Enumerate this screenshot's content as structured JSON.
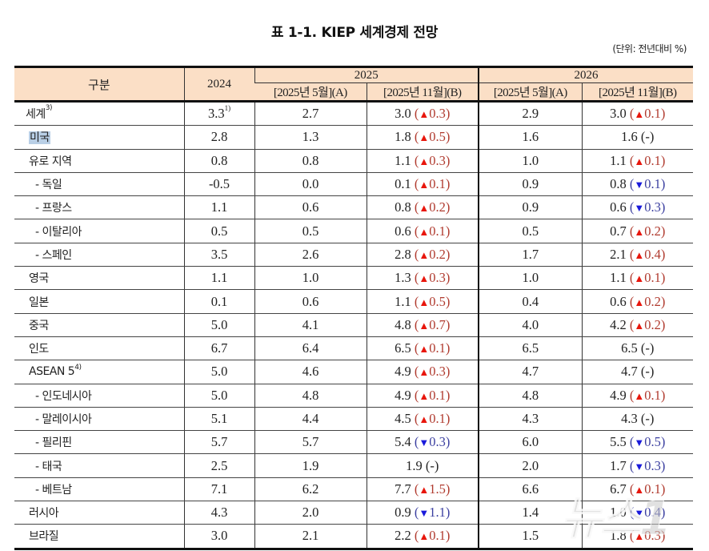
{
  "title": "표 1-1. KIEP 세계경제 전망",
  "unit": "(단위: 전년대비 %)",
  "colors": {
    "header_bg": "#fbdfc6",
    "up_triangle": "#e8160c",
    "down_triangle": "#1a1adb",
    "up_text": "#b03a2e",
    "down_text": "#3b3fa0",
    "highlight": "#b9cfe6"
  },
  "header": {
    "category": "구분",
    "y2024": "2024",
    "y2025": "2025",
    "y2026": "2026",
    "sub_may": "[2025년 5월](A)",
    "sub_nov": "[2025년 11월](B)"
  },
  "rows": [
    {
      "name": "세계",
      "sup": "3)",
      "level": 0,
      "v2024": "3.3",
      "v2024_sup": "1)",
      "y25a": "2.7",
      "y25b": "3.0",
      "y25d": "0.3",
      "y25dir": "up",
      "y26a": "2.9",
      "y26b": "3.0",
      "y26d": "0.1",
      "y26dir": "up"
    },
    {
      "name": "미국",
      "sup": "",
      "level": 1,
      "highlight": true,
      "v2024": "2.8",
      "v2024_sup": "",
      "y25a": "1.3",
      "y25b": "1.8",
      "y25d": "0.5",
      "y25dir": "up",
      "y26a": "1.6",
      "y26b": "1.6",
      "y26d": "-",
      "y26dir": "flat"
    },
    {
      "name": "유로 지역",
      "sup": "",
      "level": 1,
      "v2024": "0.8",
      "v2024_sup": "",
      "y25a": "0.8",
      "y25b": "1.1",
      "y25d": "0.3",
      "y25dir": "up",
      "y26a": "1.0",
      "y26b": "1.1",
      "y26d": "0.1",
      "y26dir": "up"
    },
    {
      "name": "-  독일",
      "sup": "",
      "level": 2,
      "v2024": "-0.5",
      "v2024_sup": "",
      "y25a": "0.0",
      "y25b": "0.1",
      "y25d": "0.1",
      "y25dir": "up",
      "y26a": "0.9",
      "y26b": "0.8",
      "y26d": "0.1",
      "y26dir": "down"
    },
    {
      "name": "-  프랑스",
      "sup": "",
      "level": 2,
      "v2024": "1.1",
      "v2024_sup": "",
      "y25a": "0.6",
      "y25b": "0.8",
      "y25d": "0.2",
      "y25dir": "up",
      "y26a": "0.9",
      "y26b": "0.6",
      "y26d": "0.3",
      "y26dir": "down"
    },
    {
      "name": "-  이탈리아",
      "sup": "",
      "level": 2,
      "v2024": "0.5",
      "v2024_sup": "",
      "y25a": "0.5",
      "y25b": "0.6",
      "y25d": "0.1",
      "y25dir": "up",
      "y26a": "0.5",
      "y26b": "0.7",
      "y26d": "0.2",
      "y26dir": "up"
    },
    {
      "name": "-  스페인",
      "sup": "",
      "level": 2,
      "v2024": "3.5",
      "v2024_sup": "",
      "y25a": "2.6",
      "y25b": "2.8",
      "y25d": "0.2",
      "y25dir": "up",
      "y26a": "1.7",
      "y26b": "2.1",
      "y26d": "0.4",
      "y26dir": "up"
    },
    {
      "name": "영국",
      "sup": "",
      "level": 1,
      "v2024": "1.1",
      "v2024_sup": "",
      "y25a": "1.0",
      "y25b": "1.3",
      "y25d": "0.3",
      "y25dir": "up",
      "y26a": "1.0",
      "y26b": "1.1",
      "y26d": "0.1",
      "y26dir": "up"
    },
    {
      "name": "일본",
      "sup": "",
      "level": 1,
      "v2024": "0.1",
      "v2024_sup": "",
      "y25a": "0.6",
      "y25b": "1.1",
      "y25d": "0.5",
      "y25dir": "up",
      "y26a": "0.4",
      "y26b": "0.6",
      "y26d": "0.2",
      "y26dir": "up"
    },
    {
      "name": "중국",
      "sup": "",
      "level": 1,
      "v2024": "5.0",
      "v2024_sup": "",
      "y25a": "4.1",
      "y25b": "4.8",
      "y25d": "0.7",
      "y25dir": "up",
      "y26a": "4.0",
      "y26b": "4.2",
      "y26d": "0.2",
      "y26dir": "up"
    },
    {
      "name": "인도",
      "sup": "",
      "level": 1,
      "v2024": "6.7",
      "v2024_sup": "",
      "y25a": "6.4",
      "y25b": "6.5",
      "y25d": "0.1",
      "y25dir": "up",
      "y26a": "6.5",
      "y26b": "6.5",
      "y26d": "-",
      "y26dir": "flat"
    },
    {
      "name": "ASEAN 5",
      "sup": "4)",
      "level": 1,
      "v2024": "5.0",
      "v2024_sup": "",
      "y25a": "4.6",
      "y25b": "4.9",
      "y25d": "0.3",
      "y25dir": "up",
      "y26a": "4.7",
      "y26b": "4.7",
      "y26d": "-",
      "y26dir": "flat"
    },
    {
      "name": "-  인도네시아",
      "sup": "",
      "level": 2,
      "v2024": "5.0",
      "v2024_sup": "",
      "y25a": "4.8",
      "y25b": "4.9",
      "y25d": "0.1",
      "y25dir": "up",
      "y26a": "4.8",
      "y26b": "4.9",
      "y26d": "0.1",
      "y26dir": "up"
    },
    {
      "name": "-  말레이시아",
      "sup": "",
      "level": 2,
      "v2024": "5.1",
      "v2024_sup": "",
      "y25a": "4.4",
      "y25b": "4.5",
      "y25d": "0.1",
      "y25dir": "up",
      "y26a": "4.3",
      "y26b": "4.3",
      "y26d": "-",
      "y26dir": "flat"
    },
    {
      "name": "-  필리핀",
      "sup": "",
      "level": 2,
      "v2024": "5.7",
      "v2024_sup": "",
      "y25a": "5.7",
      "y25b": "5.4",
      "y25d": "0.3",
      "y25dir": "down",
      "y26a": "6.0",
      "y26b": "5.5",
      "y26d": "0.5",
      "y26dir": "down"
    },
    {
      "name": "-  태국",
      "sup": "",
      "level": 2,
      "v2024": "2.5",
      "v2024_sup": "",
      "y25a": "1.9",
      "y25b": "1.9",
      "y25d": "-",
      "y25dir": "flat",
      "y26a": "2.0",
      "y26b": "1.7",
      "y26d": "0.3",
      "y26dir": "down"
    },
    {
      "name": "-  베트남",
      "sup": "",
      "level": 2,
      "v2024": "7.1",
      "v2024_sup": "",
      "y25a": "6.2",
      "y25b": "7.7",
      "y25d": "1.5",
      "y25dir": "up",
      "y26a": "6.6",
      "y26b": "6.7",
      "y26d": "0.1",
      "y26dir": "up"
    },
    {
      "name": "러시아",
      "sup": "",
      "level": 1,
      "v2024": "4.3",
      "v2024_sup": "",
      "y25a": "2.0",
      "y25b": "0.9",
      "y25d": "1.1",
      "y25dir": "down",
      "y26a": "1.4",
      "y26b": "1.0",
      "y26d": "0.4",
      "y26dir": "down"
    },
    {
      "name": "브라질",
      "sup": "",
      "level": 1,
      "v2024": "3.0",
      "v2024_sup": "",
      "y25a": "2.1",
      "y25b": "2.2",
      "y25d": "0.1",
      "y25dir": "up",
      "y26a": "1.5",
      "y26b": "1.8",
      "y26d": "0.3",
      "y26dir": "up"
    }
  ],
  "icons": {
    "up": "▲",
    "down": "▼"
  },
  "watermark": "뉴스1"
}
